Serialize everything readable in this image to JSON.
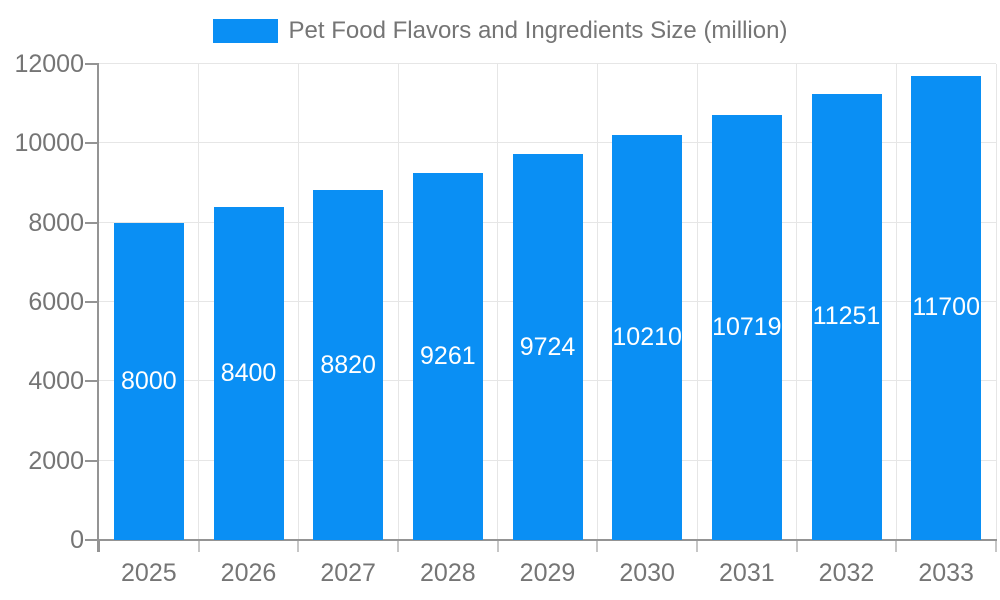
{
  "chart_data": {
    "type": "bar",
    "title": "Pet Food Flavors and Ingredients Size (million)",
    "categories": [
      "2025",
      "2026",
      "2027",
      "2028",
      "2029",
      "2030",
      "2031",
      "2032",
      "2033"
    ],
    "values": [
      8000,
      8400,
      8820,
      9261,
      9724,
      10210,
      10719,
      11251,
      11700
    ],
    "series_name": "Pet Food Flavors and Ingredients Size (million)",
    "xlabel": "",
    "ylabel": "",
    "ylim": [
      0,
      12000
    ],
    "y_ticks": [
      0,
      2000,
      4000,
      6000,
      8000,
      10000,
      12000
    ],
    "grid": true,
    "legend_position": "top-center",
    "value_labels_position": "inside-center",
    "colors": {
      "bar": "#0A8FF4",
      "axis_text": "#757575",
      "gridline": "#e6e6e6",
      "axis_line": "#949494",
      "tick": "#c6c6c6",
      "value_label": "#ffffff"
    }
  }
}
